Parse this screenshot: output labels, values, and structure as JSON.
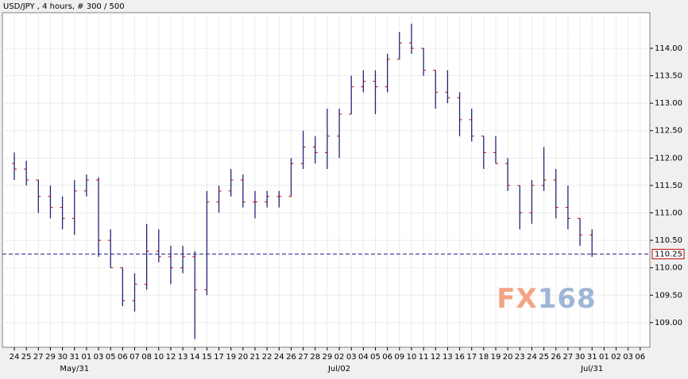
{
  "chart_data": {
    "type": "ohlc",
    "title": "USD/JPY , 4 hours, # 300 / 500",
    "categories": [
      "24",
      "25",
      "27",
      "29",
      "30",
      "31",
      "01",
      "03",
      "05",
      "06",
      "07",
      "08",
      "10",
      "12",
      "13",
      "14",
      "15",
      "17",
      "19",
      "20",
      "21",
      "22",
      "24",
      "26",
      "27",
      "28",
      "29",
      "02",
      "03",
      "04",
      "05",
      "06",
      "09",
      "10",
      "11",
      "12",
      "13",
      "16",
      "17",
      "18",
      "19",
      "20",
      "23",
      "24",
      "25",
      "26",
      "27",
      "30",
      "31",
      "01",
      "02",
      "03",
      "06"
    ],
    "period_labels": [
      "May/31",
      "Jul/02",
      "Jul/31"
    ],
    "series": [
      {
        "name": "USD/JPY",
        "color": "#23237a",
        "open": [
          111.9,
          111.8,
          111.6,
          111.3,
          111.1,
          110.9,
          111.4,
          111.6,
          110.5,
          110.0,
          109.4,
          109.7,
          110.3,
          110.2,
          110.0,
          110.2,
          109.6,
          111.2,
          111.4,
          111.6,
          111.2,
          111.2,
          111.3,
          111.3,
          111.9,
          112.2,
          112.1,
          112.4,
          112.8,
          113.3,
          113.4,
          113.3,
          113.8,
          114.1,
          114.0,
          113.6,
          113.2,
          113.1,
          112.7,
          112.4,
          112.1,
          111.9,
          111.5,
          111.0,
          111.5,
          111.6,
          111.1,
          110.9,
          110.6,
          null,
          null,
          null,
          null
        ],
        "high": [
          112.1,
          111.95,
          111.6,
          111.5,
          111.3,
          111.6,
          111.7,
          111.65,
          110.7,
          110.0,
          109.9,
          110.8,
          110.7,
          110.4,
          110.4,
          110.3,
          111.4,
          111.5,
          111.8,
          111.7,
          111.4,
          111.4,
          111.4,
          112.0,
          112.5,
          112.4,
          112.9,
          112.9,
          113.5,
          113.6,
          113.6,
          113.9,
          114.3,
          114.45,
          114.0,
          113.6,
          113.6,
          113.2,
          112.9,
          112.4,
          112.4,
          112.0,
          111.5,
          111.6,
          112.2,
          111.8,
          111.5,
          110.9,
          110.7,
          null,
          null,
          null,
          null
        ],
        "low": [
          111.6,
          111.5,
          111.0,
          110.9,
          110.7,
          110.6,
          111.3,
          110.2,
          110.0,
          109.3,
          109.2,
          109.6,
          110.1,
          109.7,
          109.9,
          108.7,
          109.5,
          111.0,
          111.3,
          111.1,
          110.9,
          111.1,
          111.1,
          111.3,
          111.8,
          111.9,
          111.8,
          112.0,
          112.8,
          113.2,
          112.8,
          113.2,
          113.8,
          113.9,
          113.5,
          112.9,
          113.0,
          112.4,
          112.3,
          111.8,
          111.9,
          111.4,
          110.7,
          110.8,
          111.4,
          110.9,
          110.7,
          110.4,
          110.2,
          null,
          null,
          null,
          null
        ],
        "close": [
          111.8,
          111.6,
          111.3,
          111.1,
          110.9,
          111.4,
          111.6,
          110.5,
          110.0,
          109.4,
          109.7,
          110.3,
          110.2,
          110.0,
          110.2,
          109.6,
          111.2,
          111.4,
          111.6,
          111.2,
          111.2,
          111.3,
          111.3,
          111.9,
          112.2,
          112.1,
          112.4,
          112.8,
          113.3,
          113.4,
          113.3,
          113.8,
          114.1,
          114.0,
          113.6,
          113.2,
          113.1,
          112.7,
          112.4,
          112.1,
          111.9,
          111.5,
          111.0,
          111.5,
          111.6,
          111.1,
          110.9,
          110.6,
          110.25,
          null,
          null,
          null,
          null
        ]
      }
    ],
    "last_price": {
      "value": 110.25,
      "label": "110.25"
    },
    "ylim": [
      108.55,
      114.65
    ],
    "yticks": [
      {
        "value": 109,
        "label": "109.00"
      },
      {
        "value": 109.5,
        "label": "109.50"
      },
      {
        "value": 110,
        "label": "110.00"
      },
      {
        "value": 110.5,
        "label": "110.50"
      },
      {
        "value": 111,
        "label": "111.00"
      },
      {
        "value": 111.5,
        "label": "111.50"
      },
      {
        "value": 112,
        "label": "112.00"
      },
      {
        "value": 112.5,
        "label": "112.50"
      },
      {
        "value": 113,
        "label": "113.00"
      },
      {
        "value": 113.5,
        "label": "113.50"
      },
      {
        "value": 114,
        "label": "114.00"
      }
    ],
    "grid": true,
    "watermark": [
      "FX",
      "168"
    ]
  }
}
